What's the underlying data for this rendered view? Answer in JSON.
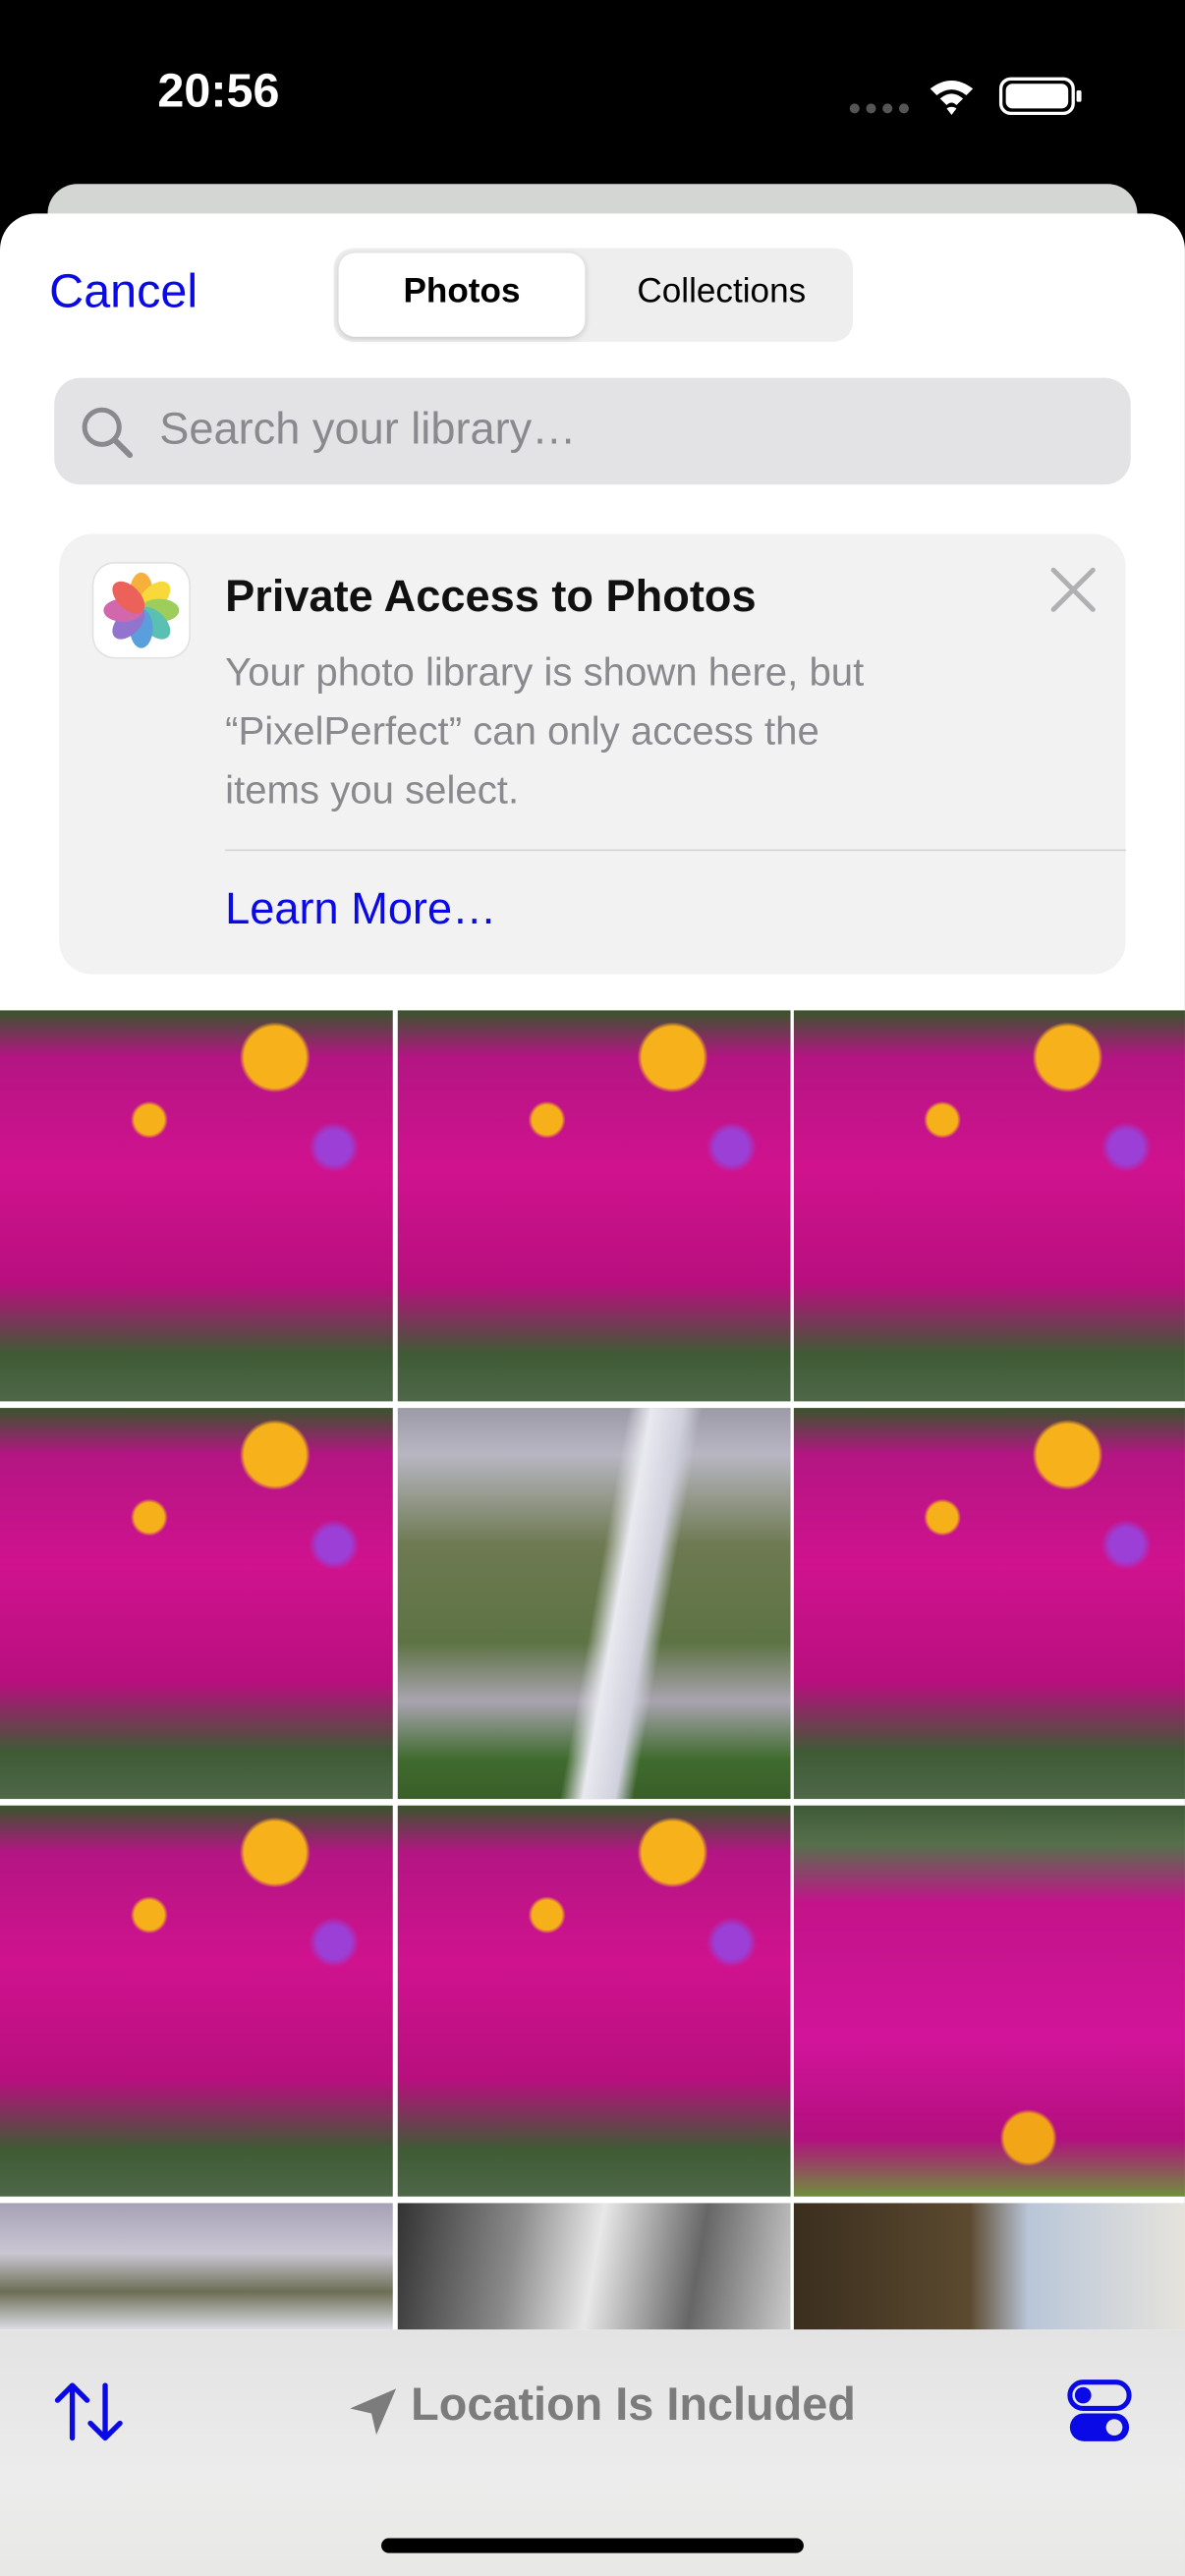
{
  "status_bar": {
    "time": "20:56"
  },
  "header": {
    "cancel": "Cancel",
    "tabs": [
      "Photos",
      "Collections"
    ]
  },
  "search": {
    "placeholder": "Search your library…"
  },
  "notice": {
    "title": "Private Access to Photos",
    "body": [
      "Your photo library is shown here, but",
      "“PixelPerfect” can only access the",
      "items you select."
    ],
    "link": "Learn More…"
  },
  "toolbar": {
    "location": "Location Is Included"
  }
}
